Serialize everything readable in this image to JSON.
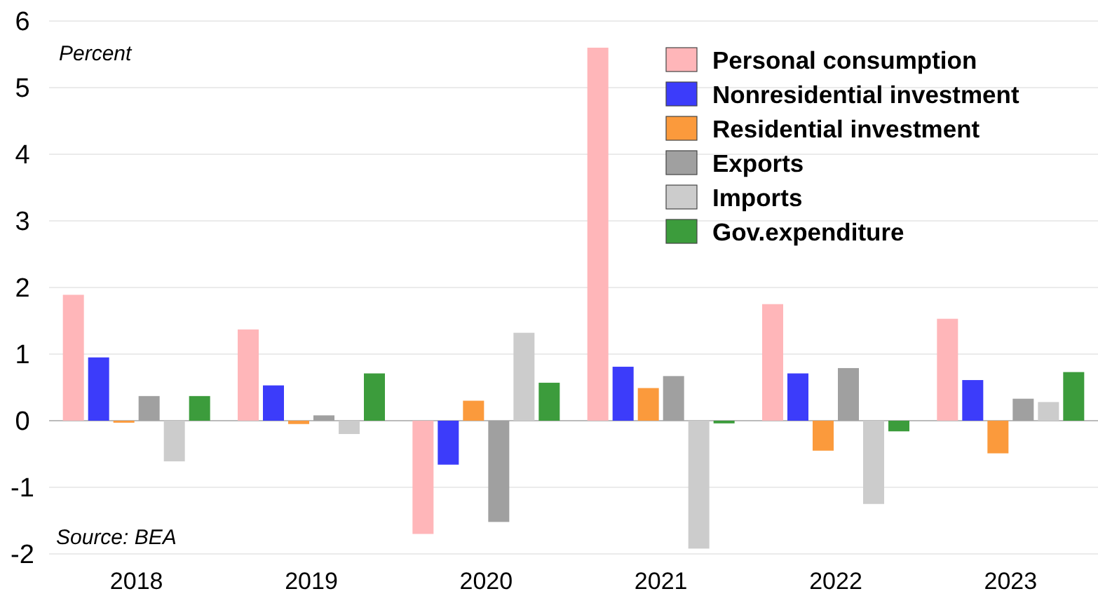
{
  "chart_data": {
    "type": "bar",
    "categories": [
      "2018",
      "2019",
      "2020",
      "2021",
      "2022",
      "2023"
    ],
    "series": [
      {
        "name": "Personal consumption",
        "color": "#ffb6b9",
        "values": [
          1.89,
          1.37,
          -1.7,
          5.6,
          1.75,
          1.53
        ]
      },
      {
        "name": "Nonresidential investment",
        "color": "#3c3cfa",
        "values": [
          0.95,
          0.53,
          -0.66,
          0.81,
          0.71,
          0.61
        ]
      },
      {
        "name": "Residential investment",
        "color": "#fb9a3c",
        "values": [
          -0.03,
          -0.05,
          0.3,
          0.49,
          -0.45,
          -0.49
        ]
      },
      {
        "name": "Exports",
        "color": "#a0a0a0",
        "values": [
          0.37,
          0.08,
          -1.52,
          0.67,
          0.79,
          0.33
        ]
      },
      {
        "name": "Imports",
        "color": "#cccccc",
        "values": [
          -0.61,
          -0.2,
          1.32,
          -1.92,
          -1.25,
          0.28
        ]
      },
      {
        "name": "Gov.expenditure",
        "color": "#3c9c3c",
        "values": [
          0.37,
          0.71,
          0.57,
          -0.04,
          -0.16,
          0.73
        ]
      }
    ],
    "ylim": [
      -2,
      6
    ],
    "yticks": [
      -2,
      -1,
      0,
      1,
      2,
      3,
      4,
      5,
      6
    ],
    "grid": "y",
    "legend": "top right",
    "annotations": [
      "Percent",
      "Source: BEA"
    ]
  }
}
